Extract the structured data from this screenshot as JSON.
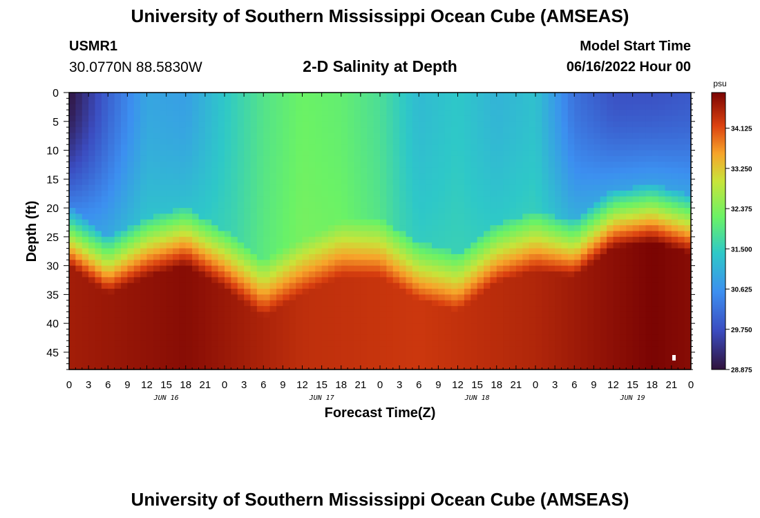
{
  "header": {
    "title": "University of Southern Mississippi Ocean Cube (AMSEAS)",
    "station": "USMR1",
    "coordinates": "30.0770N  88.5830W",
    "subtitle": "2-D Salinity at Depth",
    "model_start_label": "Model Start Time",
    "model_start_value": "06/16/2022 Hour 00"
  },
  "footer": {
    "title": "University of Southern Mississippi Ocean Cube (AMSEAS)"
  },
  "chart_data": {
    "type": "heatmap",
    "title": "2-D Salinity at Depth",
    "xlabel": "Forecast Time(Z)",
    "ylabel": "Depth (ft)",
    "x_tick_labels": [
      "0",
      "3",
      "6",
      "9",
      "12",
      "15",
      "18",
      "21",
      "0",
      "3",
      "6",
      "9",
      "12",
      "15",
      "18",
      "21",
      "0",
      "3",
      "6",
      "9",
      "12",
      "15",
      "18",
      "21",
      "0",
      "3",
      "6",
      "9",
      "12",
      "15",
      "18",
      "21",
      "0"
    ],
    "x_day_labels": [
      "JUN 16",
      "JUN 17",
      "JUN 18",
      "JUN 19"
    ],
    "xlim_hours": [
      0,
      96
    ],
    "y_tick_labels": [
      "0",
      "5",
      "10",
      "15",
      "20",
      "25",
      "30",
      "35",
      "40",
      "45"
    ],
    "ylim_ft": [
      0,
      48
    ],
    "colorbar": {
      "unit": "psu",
      "tick_labels": [
        "34.125",
        "33.250",
        "32.375",
        "31.500",
        "30.625",
        "29.750",
        "28.875"
      ],
      "range": [
        28.875,
        34.9
      ]
    },
    "surface_salinity": [
      {
        "hour": 0,
        "psu": 28.9
      },
      {
        "hour": 6,
        "psu": 30.0
      },
      {
        "hour": 12,
        "psu": 30.9
      },
      {
        "hour": 18,
        "psu": 30.8
      },
      {
        "hour": 24,
        "psu": 31.4
      },
      {
        "hour": 30,
        "psu": 31.9
      },
      {
        "hour": 36,
        "psu": 32.2
      },
      {
        "hour": 42,
        "psu": 32.1
      },
      {
        "hour": 48,
        "psu": 31.8
      },
      {
        "hour": 54,
        "psu": 31.2
      },
      {
        "hour": 60,
        "psu": 31.4
      },
      {
        "hour": 66,
        "psu": 31.1
      },
      {
        "hour": 72,
        "psu": 31.3
      },
      {
        "hour": 78,
        "psu": 30.2
      },
      {
        "hour": 84,
        "psu": 29.8
      },
      {
        "hour": 90,
        "psu": 29.8
      },
      {
        "hour": 96,
        "psu": 29.9
      }
    ],
    "halocline_depth_ft": [
      {
        "hour": 0,
        "ft": 26
      },
      {
        "hour": 6,
        "ft": 31
      },
      {
        "hour": 12,
        "ft": 28
      },
      {
        "hour": 18,
        "ft": 26
      },
      {
        "hour": 24,
        "ft": 30
      },
      {
        "hour": 30,
        "ft": 35
      },
      {
        "hour": 36,
        "ft": 31
      },
      {
        "hour": 42,
        "ft": 28
      },
      {
        "hour": 48,
        "ft": 28
      },
      {
        "hour": 54,
        "ft": 32
      },
      {
        "hour": 60,
        "ft": 34
      },
      {
        "hour": 66,
        "ft": 29
      },
      {
        "hour": 72,
        "ft": 27
      },
      {
        "hour": 78,
        "ft": 28
      },
      {
        "hour": 84,
        "ft": 23
      },
      {
        "hour": 90,
        "ft": 22
      },
      {
        "hour": 96,
        "ft": 24
      }
    ],
    "bottom_salinity": [
      {
        "hour": 0,
        "psu": 34.6
      },
      {
        "hour": 18,
        "psu": 34.8
      },
      {
        "hour": 36,
        "psu": 34.4
      },
      {
        "hour": 54,
        "psu": 34.3
      },
      {
        "hour": 72,
        "psu": 34.5
      },
      {
        "hour": 90,
        "psu": 34.9
      },
      {
        "hour": 96,
        "psu": 34.8
      }
    ]
  }
}
